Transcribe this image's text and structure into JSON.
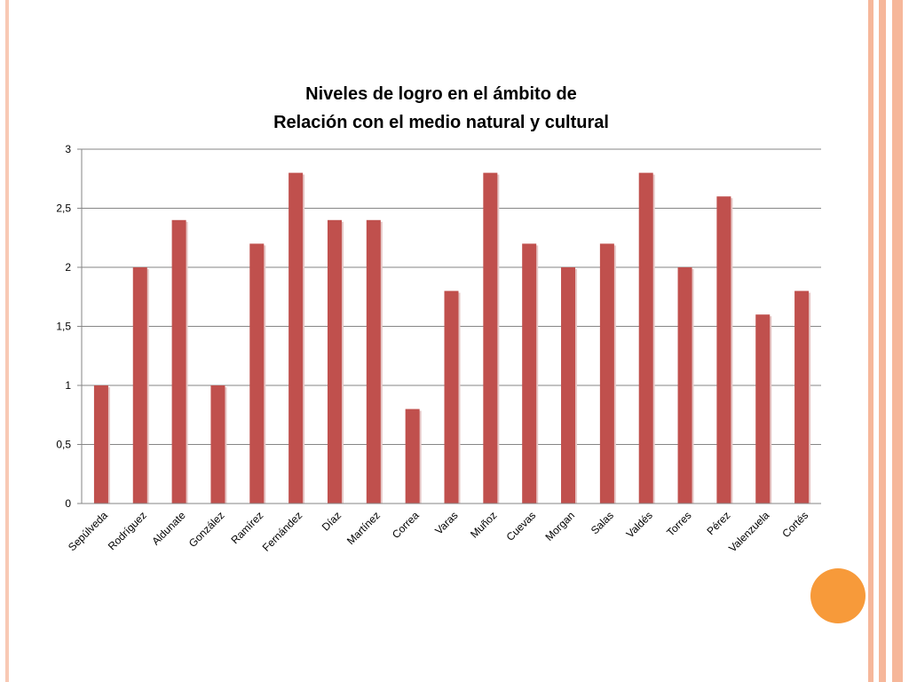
{
  "slide": {
    "decoration": {
      "left_stripe_color": "#f8c9b4",
      "right_stripe_color": "#f6b79a",
      "circle_color": "#f79a3a"
    }
  },
  "chart_data": {
    "type": "bar",
    "title_lines": [
      "Niveles de logro en el ámbito de",
      "Relación con el medio natural y cultural"
    ],
    "categories": [
      "Sepúlveda",
      "Rodríguez",
      "Aldunate",
      "González",
      "Ramírez",
      "Fernández",
      "Díaz",
      "Martínez",
      "Correa",
      "Varas",
      "Muñoz",
      "Cuevas",
      "Morgan",
      "Salas",
      "Valdés",
      "Torres",
      "Pérez",
      "Valenzuela",
      "Cortés"
    ],
    "values": [
      1,
      2,
      2.4,
      1,
      2.2,
      2.8,
      2.4,
      2.4,
      0.8,
      1.8,
      2.8,
      2.2,
      2,
      2.2,
      2.8,
      2,
      2.6,
      1.6,
      1.8
    ],
    "ylim": [
      0,
      3
    ],
    "yticks": [
      0,
      0.5,
      1,
      1.5,
      2,
      2.5,
      3
    ],
    "ytick_labels": [
      "0",
      "0,5",
      "1",
      "1,5",
      "2",
      "2,5",
      "3"
    ],
    "xlabel": "",
    "ylabel": "",
    "grid": true,
    "legend": "none",
    "bar_color": "#c0504d",
    "grid_color": "#868686"
  }
}
